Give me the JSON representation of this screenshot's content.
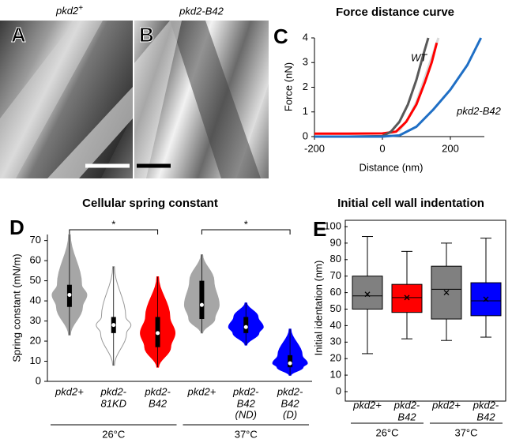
{
  "images": [
    {
      "panel": "A",
      "label": "pkd2",
      "label_sup": "+"
    },
    {
      "panel": "B",
      "label": "pkd2-B42"
    }
  ],
  "chart_data": [
    {
      "type": "line",
      "panel": "C",
      "title": "Force distance curve",
      "x_label": "Distance (nm)",
      "y_label": "Force (nN)",
      "xlim": [
        -200,
        300
      ],
      "xticks": [
        -200,
        0,
        200
      ],
      "ylim": [
        0,
        4
      ],
      "yticks": [
        0,
        1,
        2,
        3,
        4
      ],
      "series": [
        {
          "color": "#d9d9d9",
          "x": [
            -200,
            -100,
            0,
            50,
            75,
            100,
            125,
            145,
            165
          ],
          "values": [
            0,
            0,
            0.02,
            0.25,
            0.7,
            1.4,
            2.4,
            3.2,
            4
          ]
        },
        {
          "color": "#ff0000",
          "x": [
            -200,
            -100,
            0,
            40,
            70,
            100,
            125,
            145,
            160
          ],
          "values": [
            0.12,
            0.12,
            0.13,
            0.2,
            0.6,
            1.3,
            2.2,
            3.0,
            3.8
          ]
        },
        {
          "name": "WT",
          "color": "#595959",
          "x": [
            -200,
            -100,
            0,
            25,
            50,
            75,
            100,
            120,
            135
          ],
          "values": [
            0,
            0,
            0.02,
            0.2,
            0.6,
            1.3,
            2.3,
            3.3,
            4
          ]
        },
        {
          "name": "pkd2-B42",
          "color": "#1f6fc5",
          "x": [
            -200,
            -100,
            0,
            50,
            100,
            150,
            200,
            250,
            290
          ],
          "values": [
            0,
            0,
            0,
            0.05,
            0.4,
            1.1,
            1.9,
            2.9,
            4
          ]
        }
      ]
    },
    {
      "type": "violin",
      "panel": "D",
      "title": "Cellular spring constant",
      "y_label": "Spring constant (mN/m)",
      "ylim": [
        0,
        73
      ],
      "yticks": [
        0,
        10,
        20,
        30,
        40,
        50,
        60,
        70
      ],
      "categories": [
        [
          "pkd2+"
        ],
        [
          "pkd2-",
          "81KD"
        ],
        [
          "pkd2-",
          "B42"
        ],
        [
          "pkd2+"
        ],
        [
          "pkd2-",
          "B42",
          "(ND)"
        ],
        [
          "pkd2-",
          "B42",
          "(D)"
        ]
      ],
      "groups": [
        "26°C",
        "37°C"
      ],
      "significance": [
        {
          "label": "*",
          "from": 0,
          "to": 2
        },
        {
          "label": "*",
          "from": 3,
          "to": 5
        }
      ],
      "series": [
        {
          "color": "#a6a6a6",
          "min": 23,
          "q1": 37,
          "median": 43,
          "q3": 48,
          "max": 73
        },
        {
          "color": "#ffffff",
          "min": 8,
          "q1": 24,
          "median": 28,
          "q3": 32,
          "max": 57
        },
        {
          "color": "#ff0000",
          "min": 7,
          "q1": 17,
          "median": 24,
          "q3": 32,
          "max": 52
        },
        {
          "color": "#a6a6a6",
          "min": 24,
          "q1": 31,
          "median": 38,
          "q3": 50,
          "max": 63
        },
        {
          "color": "#0000ff",
          "min": 18,
          "q1": 24,
          "median": 27,
          "q3": 32,
          "max": 39
        },
        {
          "color": "#0000ff",
          "min": 3,
          "q1": 7,
          "median": 9,
          "q3": 13,
          "max": 26
        }
      ]
    },
    {
      "type": "box",
      "panel": "E",
      "title": "Initial cell wall indentation",
      "y_label": "Initial identation (nm)",
      "ylim": [
        0,
        100
      ],
      "yticks": [
        0,
        10,
        20,
        30,
        40,
        50,
        60,
        70,
        80,
        90,
        100
      ],
      "categories": [
        [
          "pkd2+"
        ],
        [
          "pkd2-",
          "B42"
        ],
        [
          "pkd2+"
        ],
        [
          "pkd2-",
          "B42"
        ]
      ],
      "groups": [
        "26°C",
        "37°C"
      ],
      "series": [
        {
          "color": "#808080",
          "min": 23,
          "q1": 50,
          "median": 58,
          "q3": 70,
          "max": 94,
          "mean": 59
        },
        {
          "color": "#ff0000",
          "min": 32,
          "q1": 48,
          "median": 57,
          "q3": 65,
          "max": 85,
          "mean": 57
        },
        {
          "color": "#808080",
          "min": 31,
          "q1": 44,
          "median": 62,
          "q3": 76,
          "max": 90,
          "mean": 60
        },
        {
          "color": "#0000ff",
          "min": 33,
          "q1": 46,
          "median": 55,
          "q3": 66,
          "max": 93,
          "mean": 56
        }
      ]
    }
  ]
}
